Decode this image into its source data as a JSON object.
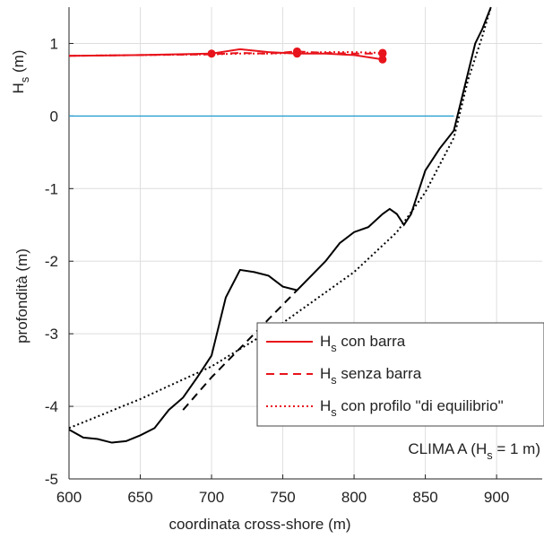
{
  "chart_data": {
    "type": "line",
    "ylabel_top": [
      "H",
      "s",
      " (m)"
    ],
    "ylabel": "profondità (m)",
    "xlabel": "coordinata cross-shore (m)",
    "annotation": [
      "CLIMA A (H",
      "s",
      " = 1 m)"
    ],
    "xlim": [
      600,
      932
    ],
    "ylim": [
      -5,
      1.5
    ],
    "xticks": [
      600,
      650,
      700,
      750,
      800,
      850,
      900
    ],
    "yticks": [
      -5,
      -4,
      -3,
      -2,
      -1,
      0,
      1
    ],
    "grid": true,
    "legend": "lower right",
    "series": [
      {
        "name": [
          "H",
          "s",
          " con barra"
        ],
        "color": "#e8141c",
        "style": "solid",
        "x": [
          600,
          650,
          700,
          720,
          740,
          760,
          780,
          800,
          820
        ],
        "values": [
          0.83,
          0.84,
          0.86,
          0.92,
          0.88,
          0.86,
          0.86,
          0.84,
          0.78
        ],
        "markers": {
          "x": [
            700,
            760,
            820
          ],
          "values": [
            0.86,
            0.86,
            0.78
          ]
        }
      },
      {
        "name": [
          "H",
          "s",
          " senza barra"
        ],
        "color": "#e8141c",
        "style": "dashed",
        "x": [
          600,
          650,
          700,
          720,
          740,
          760,
          780,
          800,
          820
        ],
        "values": [
          0.83,
          0.84,
          0.85,
          0.87,
          0.86,
          0.89,
          0.87,
          0.86,
          0.86
        ],
        "markers": {
          "x": [
            760,
            820
          ],
          "values": [
            0.89,
            0.86
          ]
        }
      },
      {
        "name": [
          "H",
          "s",
          " con profilo \"di equilibrio\""
        ],
        "color": "#e8141c",
        "style": "dotted",
        "x": [
          600,
          650,
          700,
          720,
          740,
          760,
          780,
          800,
          820
        ],
        "values": [
          0.83,
          0.84,
          0.85,
          0.86,
          0.86,
          0.87,
          0.88,
          0.88,
          0.87
        ],
        "markers": {
          "x": [
            820
          ],
          "values": [
            0.87
          ]
        }
      }
    ],
    "profiles": [
      {
        "color": "#1f9bcf",
        "style": "solid",
        "x": [
          600,
          870
        ],
        "values": [
          0,
          0
        ]
      },
      {
        "color": "#000000",
        "style": "solid",
        "x": [
          600,
          610,
          620,
          630,
          640,
          650,
          660,
          670,
          680,
          690,
          700,
          710,
          720,
          730,
          740,
          750,
          760,
          770,
          780,
          790,
          800,
          810,
          820,
          825,
          830,
          835,
          840,
          850,
          860,
          870,
          875,
          880,
          885,
          890,
          896
        ],
        "values": [
          -4.32,
          -4.43,
          -4.45,
          -4.5,
          -4.48,
          -4.4,
          -4.3,
          -4.05,
          -3.88,
          -3.6,
          -3.3,
          -2.5,
          -2.12,
          -2.15,
          -2.2,
          -2.35,
          -2.4,
          -2.2,
          -2.0,
          -1.75,
          -1.6,
          -1.53,
          -1.35,
          -1.28,
          -1.35,
          -1.5,
          -1.35,
          -0.75,
          -0.45,
          -0.2,
          0.2,
          0.6,
          1.0,
          1.2,
          1.5
        ]
      },
      {
        "color": "#000000",
        "style": "dashed",
        "x": [
          680,
          700,
          720,
          740,
          760
        ],
        "values": [
          -4.05,
          -3.6,
          -3.2,
          -2.8,
          -2.4
        ]
      },
      {
        "color": "#000000",
        "style": "dotted",
        "x": [
          600,
          650,
          700,
          750,
          800,
          830,
          850,
          870,
          880,
          890,
          896
        ],
        "values": [
          -4.3,
          -3.9,
          -3.45,
          -2.85,
          -2.15,
          -1.6,
          -1.05,
          -0.3,
          0.5,
          1.1,
          1.5
        ]
      }
    ]
  }
}
